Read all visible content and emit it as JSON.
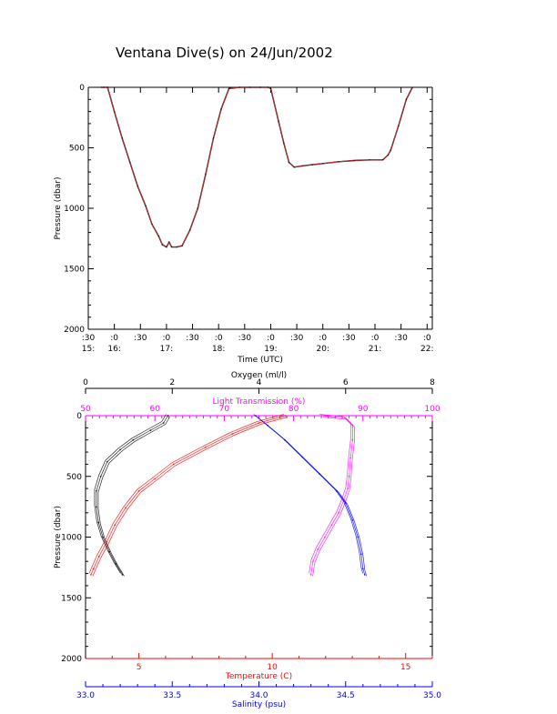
{
  "title": "Ventana Dive(s) on 24/Jun/2002",
  "colors": {
    "axis": "#000000",
    "pressure_trace": "#000000",
    "pressure_trace_overlay": "#e03030",
    "oxygen": "#000000",
    "light": "#ff00ff",
    "temperature": "#ff0000",
    "salinity": "#0000ff"
  },
  "chart_data": [
    {
      "type": "line",
      "title": "Ventana Dive(s) on 24/Jun/2002",
      "xlabel": "Time (UTC)",
      "ylabel": "Pressure (dbar)",
      "y_inverted": true,
      "ylim": [
        2000,
        0
      ],
      "xlim": [
        15.5,
        22.1
      ],
      "x_ticks": [
        15.5,
        16,
        16.5,
        17,
        17.5,
        18,
        18.5,
        19,
        19.5,
        20,
        20.5,
        21,
        21.5,
        22
      ],
      "x_tick_minutes": [
        ":30",
        ":0",
        ":30",
        ":0",
        ":30",
        ":0",
        ":30",
        ":0",
        ":30",
        ":0",
        ":30",
        ":0",
        ":30",
        ":0"
      ],
      "x_tick_hours": [
        "15:",
        "16:",
        "",
        "17:",
        "",
        "18:",
        "",
        "19:",
        "",
        "20:",
        "",
        "21:",
        "",
        "22:"
      ],
      "y_ticks": [
        0,
        500,
        1000,
        1500,
        2000
      ],
      "y_tick_labels": [
        "0",
        "500",
        "1000",
        "1500",
        "2000"
      ],
      "series": [
        {
          "x": [
            15.75,
            15.8,
            15.87,
            16.0,
            16.15,
            16.3,
            16.45,
            16.6,
            16.72,
            16.85,
            16.92,
            17.0,
            17.05,
            17.1,
            17.2,
            17.3,
            17.45,
            17.6,
            17.75,
            17.9,
            18.05,
            18.2,
            18.4,
            18.6,
            18.8,
            18.95,
            19.0,
            19.15,
            19.25,
            19.35,
            19.45,
            19.6,
            19.8,
            20.0,
            20.3,
            20.6,
            20.9,
            21.15,
            21.25,
            21.3,
            21.45,
            21.6,
            21.72
          ],
          "y": [
            0,
            0,
            0,
            200,
            420,
            620,
            820,
            980,
            1130,
            1230,
            1300,
            1320,
            1280,
            1320,
            1320,
            1310,
            1180,
            1000,
            720,
            420,
            180,
            10,
            0,
            0,
            0,
            0,
            10,
            280,
            460,
            620,
            660,
            650,
            640,
            630,
            615,
            605,
            600,
            600,
            560,
            520,
            320,
            100,
            0
          ]
        }
      ]
    },
    {
      "type": "line",
      "ylabel": "Pressure (dbar)",
      "y_inverted": true,
      "ylim": [
        2000,
        0
      ],
      "y_ticks": [
        0,
        500,
        1000,
        1500,
        2000
      ],
      "y_tick_labels": [
        "0",
        "500",
        "1000",
        "1500",
        "2000"
      ],
      "axes": {
        "oxygen": {
          "label": "Oxygen (ml/l)",
          "range": [
            0,
            8
          ],
          "ticks": [
            0,
            2,
            4,
            6,
            8
          ],
          "tick_labels": [
            "0",
            "2",
            "4",
            "6",
            "8"
          ]
        },
        "light": {
          "label": "Light Transmission (%)",
          "range": [
            50,
            100
          ],
          "ticks": [
            50,
            60,
            70,
            80,
            90,
            100
          ],
          "tick_labels": [
            "50",
            "60",
            "70",
            "80",
            "90",
            "100"
          ]
        },
        "temperature": {
          "label": "Temperature (C)",
          "range": [
            3,
            16
          ],
          "ticks": [
            5,
            10,
            15
          ],
          "tick_labels": [
            "5",
            "10",
            "15"
          ]
        },
        "salinity": {
          "label": "Salinity (psu)",
          "range": [
            33.0,
            35.0
          ],
          "ticks": [
            33.0,
            33.5,
            34.0,
            34.5,
            35.0
          ],
          "tick_labels": [
            "33.0",
            "33.5",
            "34.0",
            "34.5",
            "35.0"
          ]
        }
      },
      "series": [
        {
          "axis": "oxygen",
          "values": [
            1.9,
            1.8,
            1.5,
            1.1,
            0.8,
            0.5,
            0.35,
            0.25,
            0.25,
            0.3,
            0.4,
            0.55,
            0.7,
            0.85
          ],
          "pressure": [
            0,
            60,
            120,
            200,
            280,
            380,
            500,
            620,
            750,
            880,
            1000,
            1120,
            1220,
            1310
          ]
        },
        {
          "axis": "light",
          "values": [
            84,
            87.5,
            88.5,
            88.5,
            88.2,
            88.0,
            87.8,
            87.2,
            86.5,
            85.5,
            84.5,
            83.5,
            82.8,
            82.5
          ],
          "pressure": [
            0,
            20,
            80,
            200,
            350,
            500,
            600,
            700,
            800,
            900,
            1000,
            1100,
            1200,
            1310
          ]
        },
        {
          "axis": "temperature",
          "values": [
            10.5,
            9.5,
            8.5,
            7.5,
            6.3,
            5.6,
            5.0,
            4.5,
            4.1,
            3.8,
            3.5,
            3.3,
            3.2
          ],
          "pressure": [
            0,
            60,
            150,
            260,
            400,
            520,
            620,
            760,
            900,
            1040,
            1160,
            1260,
            1310
          ]
        },
        {
          "axis": "salinity",
          "values": [
            33.98,
            34.05,
            34.15,
            34.25,
            34.35,
            34.45,
            34.5,
            34.54,
            34.57,
            34.59,
            34.6,
            34.61
          ],
          "pressure": [
            0,
            80,
            200,
            340,
            480,
            620,
            720,
            860,
            1000,
            1140,
            1260,
            1310
          ]
        }
      ]
    }
  ]
}
